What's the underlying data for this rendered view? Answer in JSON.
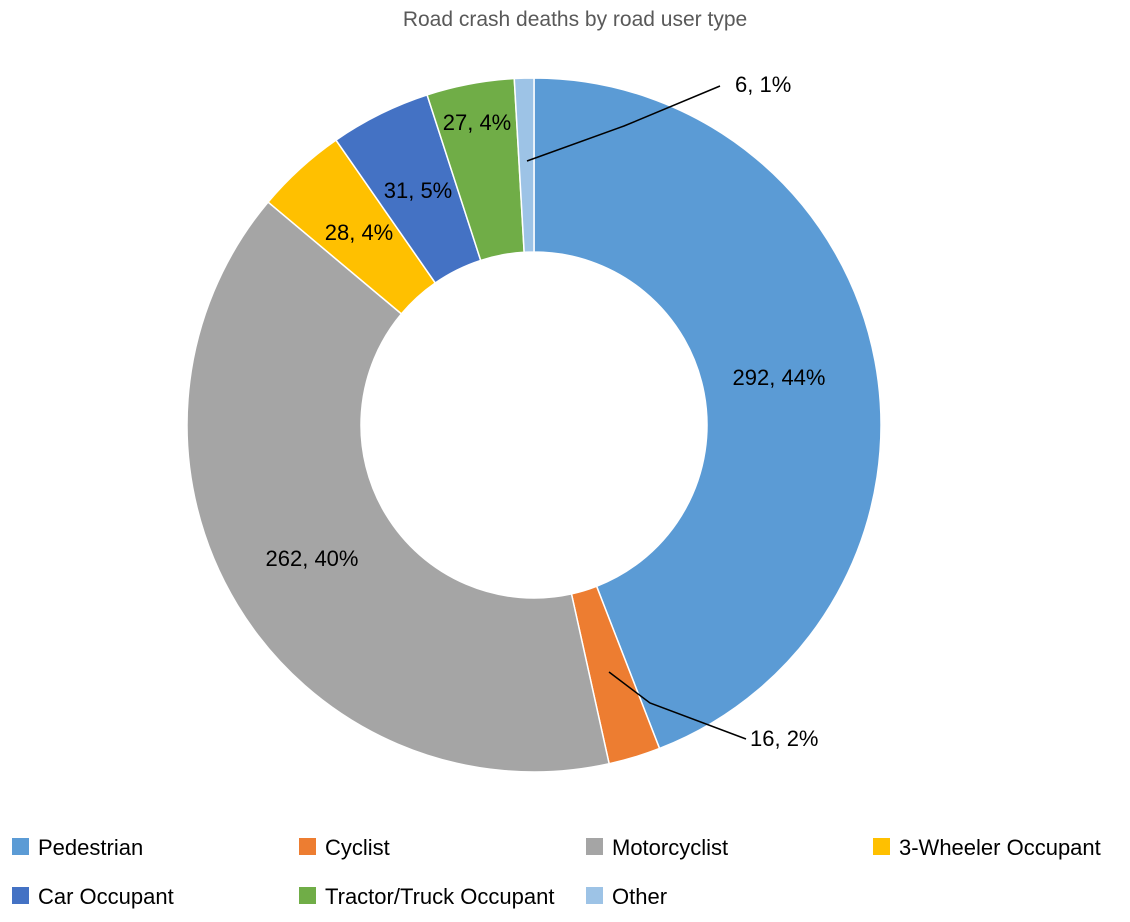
{
  "chart_data": {
    "type": "pie",
    "variant": "donut",
    "title": "Road crash deaths by road user type",
    "categories": [
      "Pedestrian",
      "Cyclist",
      "Motorcyclist",
      "3-Wheeler Occupant",
      "Car Occupant",
      "Tractor/Truck Occupant",
      "Other"
    ],
    "values": [
      292,
      16,
      262,
      28,
      31,
      27,
      6
    ],
    "percent_labels": [
      "44%",
      "2%",
      "40%",
      "4%",
      "5%",
      "4%",
      "1%"
    ],
    "data_labels": [
      "292, 44%",
      "16, 2%",
      "262, 40%",
      "28, 4%",
      "31, 5%",
      "27, 4%",
      "6, 1%"
    ],
    "colors": [
      "#5B9BD5",
      "#ED7D31",
      "#A5A5A5",
      "#FFC000",
      "#4472C4",
      "#70AD47",
      "#9DC3E6"
    ],
    "legend_position": "bottom"
  }
}
